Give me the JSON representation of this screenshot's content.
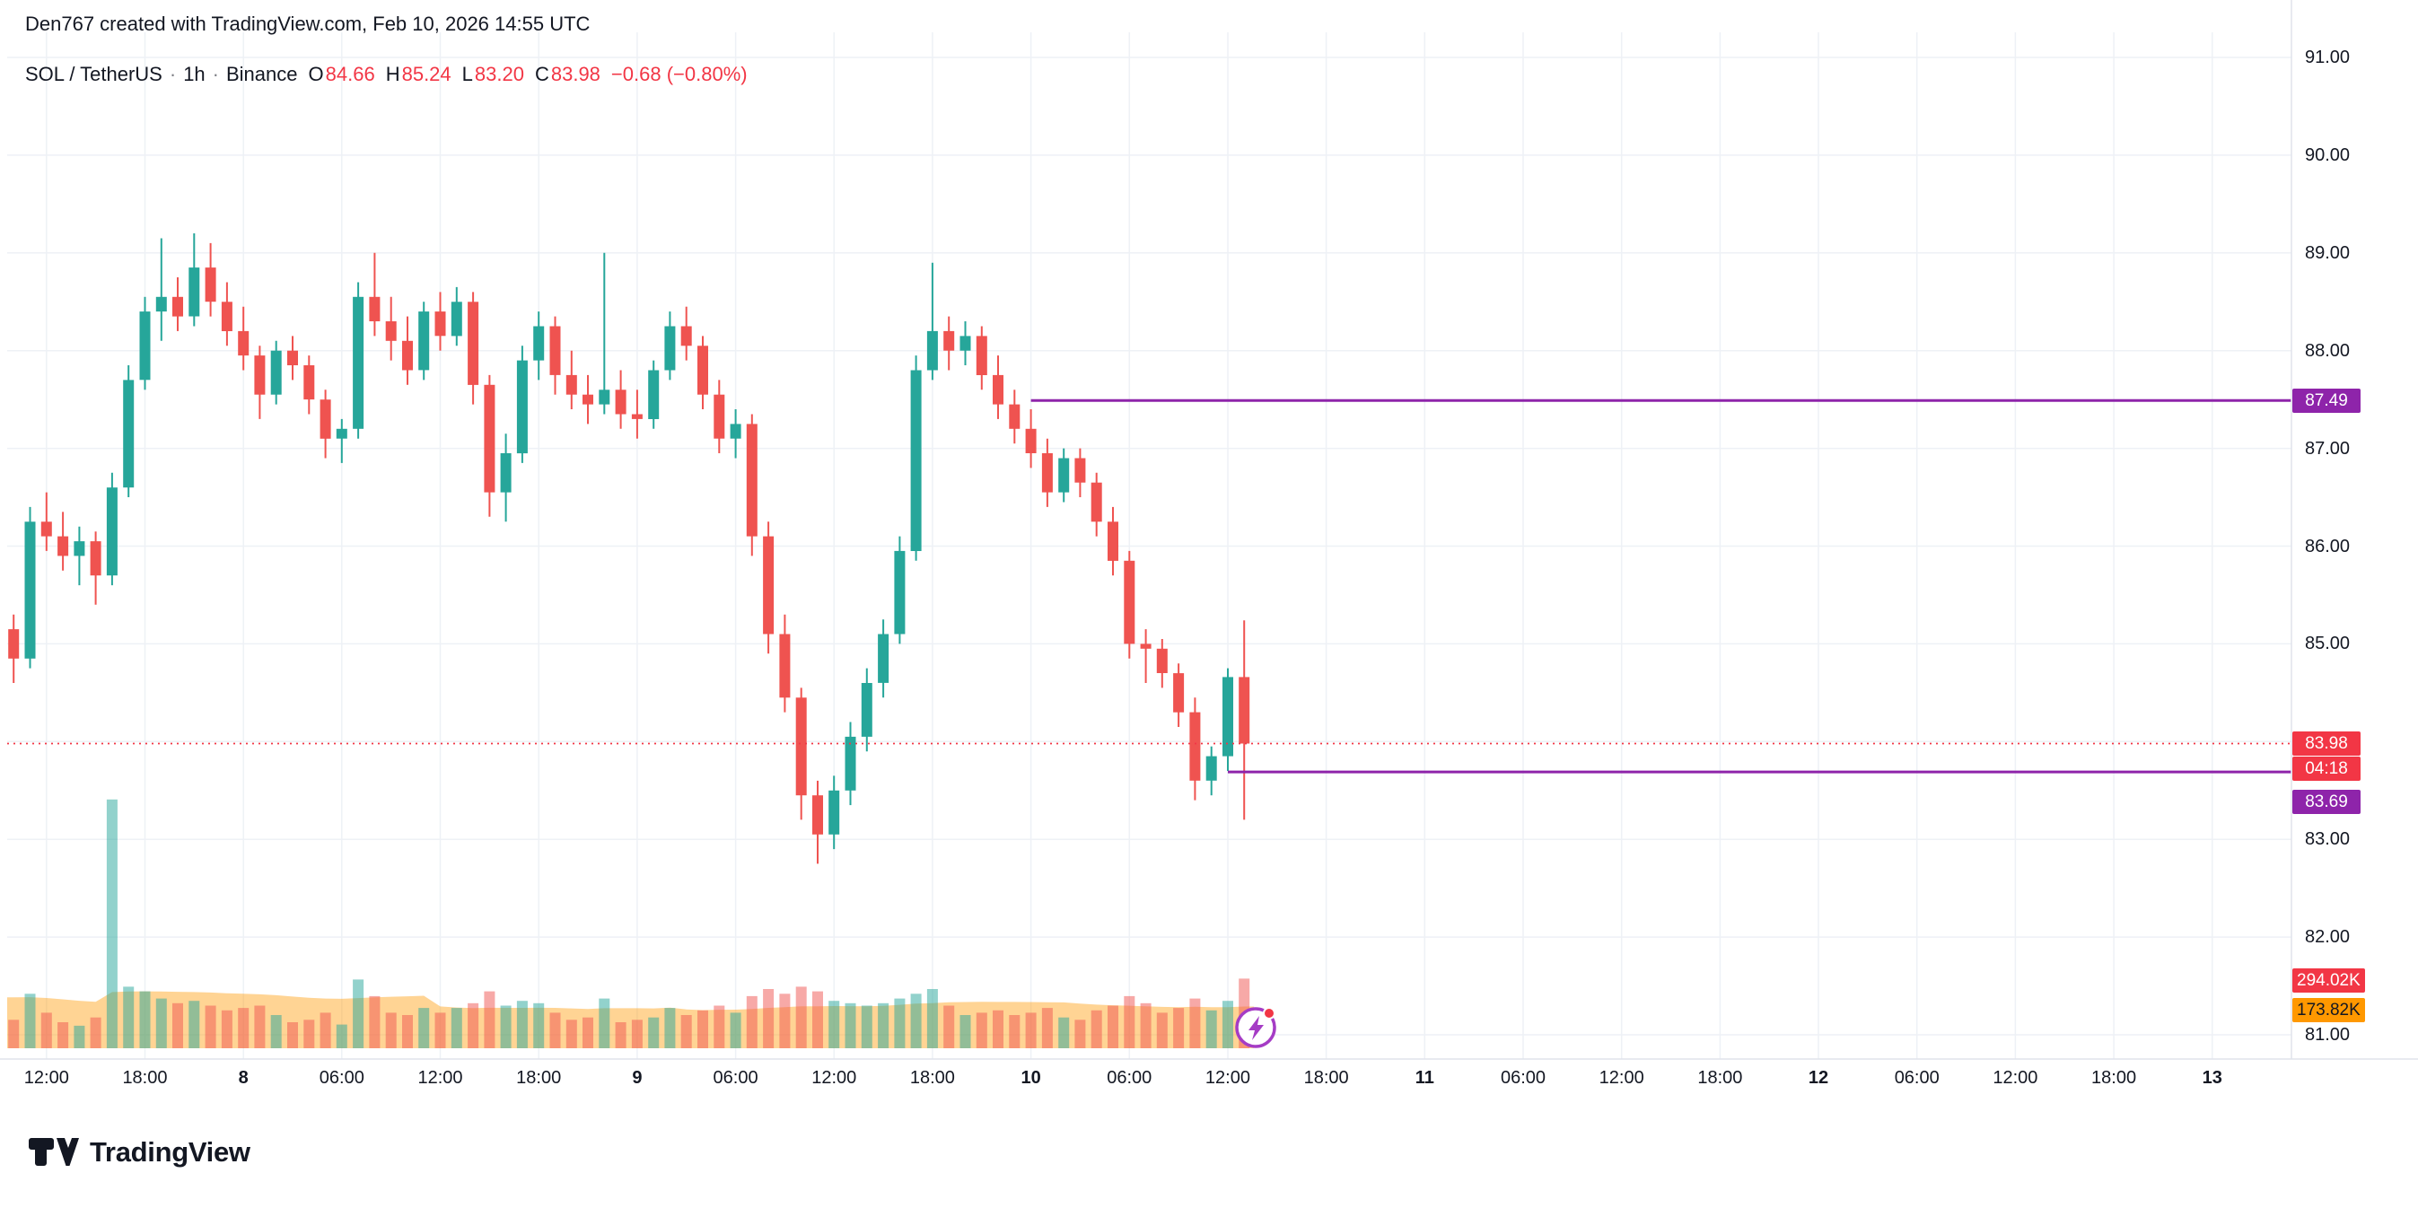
{
  "attribution": "Den767 created with TradingView.com, Feb 10, 2026 14:55 UTC",
  "header": {
    "symbol": "SOL / TetherUS",
    "sep": "·",
    "interval": "1h",
    "exchange": "Binance",
    "ohlc": {
      "o_label": "O",
      "o": "84.66",
      "h_label": "H",
      "h": "85.24",
      "l_label": "L",
      "l": "83.20",
      "c_label": "C",
      "c": "83.98",
      "change": "−0.68 (−0.80%)"
    }
  },
  "footer": {
    "brand": "TradingView"
  },
  "chart_data": {
    "type": "candlestick",
    "title": "SOL / TetherUS · 1h · Binance",
    "interval": "1h",
    "ylim": [
      81,
      91
    ],
    "legend_position": "top-left",
    "grid": true,
    "colors": {
      "up": "#26a69a",
      "down": "#ef5350",
      "level": "#8e24aa",
      "last_price": "#f23645",
      "volume_ma_fill": "#ff9800",
      "grid": "#eef1f6",
      "axis": "#e0e3eb"
    },
    "columns": [
      "time",
      "open",
      "high",
      "low",
      "close",
      "volume_k"
    ],
    "candles": [
      [
        "02-07 10:00",
        85.15,
        85.3,
        84.6,
        84.85,
        120
      ],
      [
        "02-07 11:00",
        84.85,
        86.4,
        84.75,
        86.25,
        230
      ],
      [
        "02-07 12:00",
        86.25,
        86.55,
        85.95,
        86.1,
        150
      ],
      [
        "02-07 13:00",
        86.1,
        86.35,
        85.75,
        85.9,
        110
      ],
      [
        "02-07 14:00",
        85.9,
        86.2,
        85.6,
        86.05,
        95
      ],
      [
        "02-07 15:00",
        86.05,
        86.15,
        85.4,
        85.7,
        130
      ],
      [
        "02-07 16:00",
        85.7,
        86.75,
        85.6,
        86.6,
        1050
      ],
      [
        "02-07 17:00",
        86.6,
        87.85,
        86.5,
        87.7,
        260
      ],
      [
        "02-07 18:00",
        87.7,
        88.55,
        87.6,
        88.4,
        240
      ],
      [
        "02-07 19:00",
        88.4,
        89.15,
        88.1,
        88.55,
        210
      ],
      [
        "02-07 20:00",
        88.55,
        88.75,
        88.2,
        88.35,
        190
      ],
      [
        "02-07 21:00",
        88.35,
        89.2,
        88.25,
        88.85,
        200
      ],
      [
        "02-07 22:00",
        88.85,
        89.1,
        88.35,
        88.5,
        180
      ],
      [
        "02-07 23:00",
        88.5,
        88.7,
        88.05,
        88.2,
        160
      ],
      [
        "02-08 00:00",
        88.2,
        88.45,
        87.8,
        87.95,
        170
      ],
      [
        "02-08 01:00",
        87.95,
        88.05,
        87.3,
        87.55,
        180
      ],
      [
        "02-08 02:00",
        87.55,
        88.1,
        87.45,
        88.0,
        140
      ],
      [
        "02-08 03:00",
        88.0,
        88.15,
        87.7,
        87.85,
        110
      ],
      [
        "02-08 04:00",
        87.85,
        87.95,
        87.35,
        87.5,
        120
      ],
      [
        "02-08 05:00",
        87.5,
        87.6,
        86.9,
        87.1,
        150
      ],
      [
        "02-08 06:00",
        87.1,
        87.3,
        86.85,
        87.2,
        100
      ],
      [
        "02-08 07:00",
        87.2,
        88.7,
        87.1,
        88.55,
        290
      ],
      [
        "02-08 08:00",
        88.55,
        89.0,
        88.15,
        88.3,
        220
      ],
      [
        "02-08 09:00",
        88.3,
        88.55,
        87.9,
        88.1,
        150
      ],
      [
        "02-08 10:00",
        88.1,
        88.35,
        87.65,
        87.8,
        140
      ],
      [
        "02-08 11:00",
        87.8,
        88.5,
        87.7,
        88.4,
        170
      ],
      [
        "02-08 12:00",
        88.4,
        88.6,
        88.0,
        88.15,
        150
      ],
      [
        "02-08 13:00",
        88.15,
        88.65,
        88.05,
        88.5,
        170
      ],
      [
        "02-08 14:00",
        88.5,
        88.6,
        87.45,
        87.65,
        190
      ],
      [
        "02-08 15:00",
        87.65,
        87.75,
        86.3,
        86.55,
        240
      ],
      [
        "02-08 16:00",
        86.55,
        87.15,
        86.25,
        86.95,
        180
      ],
      [
        "02-08 17:00",
        86.95,
        88.05,
        86.85,
        87.9,
        200
      ],
      [
        "02-08 18:00",
        87.9,
        88.4,
        87.7,
        88.25,
        190
      ],
      [
        "02-08 19:00",
        88.25,
        88.35,
        87.55,
        87.75,
        150
      ],
      [
        "02-08 20:00",
        87.75,
        88.0,
        87.4,
        87.55,
        120
      ],
      [
        "02-08 21:00",
        87.55,
        87.75,
        87.25,
        87.45,
        130
      ],
      [
        "02-08 22:00",
        87.45,
        89.0,
        87.35,
        87.6,
        210
      ],
      [
        "02-08 23:00",
        87.6,
        87.8,
        87.2,
        87.35,
        110
      ],
      [
        "02-09 00:00",
        87.35,
        87.6,
        87.1,
        87.3,
        120
      ],
      [
        "02-09 01:00",
        87.3,
        87.9,
        87.2,
        87.8,
        130
      ],
      [
        "02-09 02:00",
        87.8,
        88.4,
        87.7,
        88.25,
        170
      ],
      [
        "02-09 03:00",
        88.25,
        88.45,
        87.9,
        88.05,
        140
      ],
      [
        "02-09 04:00",
        88.05,
        88.15,
        87.4,
        87.55,
        160
      ],
      [
        "02-09 05:00",
        87.55,
        87.7,
        86.95,
        87.1,
        180
      ],
      [
        "02-09 06:00",
        87.1,
        87.4,
        86.9,
        87.25,
        150
      ],
      [
        "02-09 07:00",
        87.25,
        87.35,
        85.9,
        86.1,
        220
      ],
      [
        "02-09 08:00",
        86.1,
        86.25,
        84.9,
        85.1,
        250
      ],
      [
        "02-09 09:00",
        85.1,
        85.3,
        84.3,
        84.45,
        230
      ],
      [
        "02-09 10:00",
        84.45,
        84.55,
        83.2,
        83.45,
        260
      ],
      [
        "02-09 11:00",
        83.45,
        83.6,
        82.75,
        83.05,
        240
      ],
      [
        "02-09 12:00",
        83.05,
        83.65,
        82.9,
        83.5,
        200
      ],
      [
        "02-09 13:00",
        83.5,
        84.2,
        83.35,
        84.05,
        190
      ],
      [
        "02-09 14:00",
        84.05,
        84.75,
        83.9,
        84.6,
        180
      ],
      [
        "02-09 15:00",
        84.6,
        85.25,
        84.45,
        85.1,
        190
      ],
      [
        "02-09 16:00",
        85.1,
        86.1,
        85.0,
        85.95,
        210
      ],
      [
        "02-09 17:00",
        85.95,
        87.95,
        85.85,
        87.8,
        230
      ],
      [
        "02-09 18:00",
        87.8,
        88.9,
        87.7,
        88.2,
        250
      ],
      [
        "02-09 19:00",
        88.2,
        88.35,
        87.8,
        88.0,
        180
      ],
      [
        "02-09 20:00",
        88.0,
        88.3,
        87.85,
        88.15,
        140
      ],
      [
        "02-09 21:00",
        88.15,
        88.25,
        87.6,
        87.75,
        150
      ],
      [
        "02-09 22:00",
        87.75,
        87.95,
        87.3,
        87.45,
        160
      ],
      [
        "02-09 23:00",
        87.45,
        87.6,
        87.05,
        87.2,
        140
      ],
      [
        "02-10 00:00",
        87.2,
        87.4,
        86.8,
        86.95,
        150
      ],
      [
        "02-10 01:00",
        86.95,
        87.1,
        86.4,
        86.55,
        170
      ],
      [
        "02-10 02:00",
        86.55,
        87.0,
        86.45,
        86.9,
        130
      ],
      [
        "02-10 03:00",
        86.9,
        87.0,
        86.5,
        86.65,
        120
      ],
      [
        "02-10 04:00",
        86.65,
        86.75,
        86.1,
        86.25,
        160
      ],
      [
        "02-10 05:00",
        86.25,
        86.4,
        85.7,
        85.85,
        180
      ],
      [
        "02-10 06:00",
        85.85,
        85.95,
        84.85,
        85.0,
        220
      ],
      [
        "02-10 07:00",
        85.0,
        85.15,
        84.6,
        84.95,
        190
      ],
      [
        "02-10 08:00",
        84.95,
        85.05,
        84.55,
        84.7,
        150
      ],
      [
        "02-10 09:00",
        84.7,
        84.8,
        84.15,
        84.3,
        170
      ],
      [
        "02-10 10:00",
        84.3,
        84.45,
        83.4,
        83.6,
        210
      ],
      [
        "02-10 11:00",
        83.6,
        83.95,
        83.45,
        83.85,
        160
      ],
      [
        "02-10 12:00",
        83.85,
        84.75,
        83.7,
        84.66,
        200
      ],
      [
        "02-10 13:00",
        84.66,
        85.24,
        83.2,
        83.98,
        294.02
      ]
    ],
    "price_gridlines": [
      81,
      82,
      83,
      84,
      85,
      86,
      87,
      88,
      89,
      90,
      91
    ],
    "price_axis_labels": [
      {
        "p": 91,
        "text": "91.00"
      },
      {
        "p": 90,
        "text": "90.00"
      },
      {
        "p": 89,
        "text": "89.00"
      },
      {
        "p": 88,
        "text": "88.00"
      },
      {
        "p": 87,
        "text": "87.00"
      },
      {
        "p": 86,
        "text": "86.00"
      },
      {
        "p": 85,
        "text": "85.00"
      },
      {
        "p": 83,
        "text": "83.00"
      },
      {
        "p": 82,
        "text": "82.00"
      },
      {
        "p": 81,
        "text": "81.00"
      }
    ],
    "time_ticks": [
      {
        "i": 2,
        "label": "12:00",
        "major": false
      },
      {
        "i": 8,
        "label": "18:00",
        "major": false
      },
      {
        "i": 14,
        "label": "8",
        "major": true
      },
      {
        "i": 20,
        "label": "06:00",
        "major": false
      },
      {
        "i": 26,
        "label": "12:00",
        "major": false
      },
      {
        "i": 32,
        "label": "18:00",
        "major": false
      },
      {
        "i": 38,
        "label": "9",
        "major": true
      },
      {
        "i": 44,
        "label": "06:00",
        "major": false
      },
      {
        "i": 50,
        "label": "12:00",
        "major": false
      },
      {
        "i": 56,
        "label": "18:00",
        "major": false
      },
      {
        "i": 62,
        "label": "10",
        "major": true
      },
      {
        "i": 68,
        "label": "06:00",
        "major": false
      },
      {
        "i": 74,
        "label": "12:00",
        "major": false
      },
      {
        "i": 80,
        "label": "18:00",
        "major": false
      },
      {
        "i": 86,
        "label": "11",
        "major": true
      },
      {
        "i": 92,
        "label": "06:00",
        "major": false
      },
      {
        "i": 98,
        "label": "12:00",
        "major": false
      },
      {
        "i": 104,
        "label": "18:00",
        "major": false
      },
      {
        "i": 110,
        "label": "12",
        "major": true
      },
      {
        "i": 116,
        "label": "06:00",
        "major": false
      },
      {
        "i": 122,
        "label": "12:00",
        "major": false
      },
      {
        "i": 128,
        "label": "18:00",
        "major": false
      },
      {
        "i": 134,
        "label": "13",
        "major": true
      }
    ],
    "levels": [
      {
        "price": 87.49,
        "from_index": 62,
        "label": "87.49"
      },
      {
        "price": 83.69,
        "from_index": 74,
        "label": "83.69"
      }
    ],
    "current": {
      "price": 83.98,
      "label": "83.98",
      "countdown": "04:18"
    },
    "volume_labels": {
      "current": "294.02K",
      "ma": "173.82K"
    }
  }
}
